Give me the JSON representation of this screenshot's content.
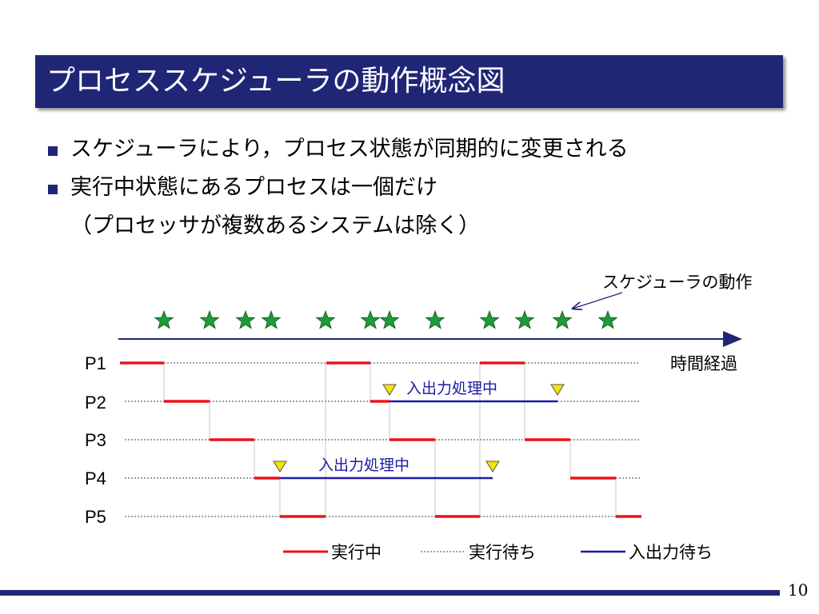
{
  "title": "プロセススケジューラの動作概念図",
  "bullets": [
    {
      "text": "スケジューラにより，プロセス状態が同期的に変更される"
    },
    {
      "text": "実行中状態にあるプロセスは一個だけ",
      "sub": "（プロセッサが複数あるシステムは除く）"
    }
  ],
  "diagram": {
    "scheduler_label": "スケジューラの動作",
    "time_label": "時間経過",
    "process_labels": [
      "P1",
      "P2",
      "P3",
      "P4",
      "P5"
    ],
    "io_labels": [
      "入出力処理中",
      "入出力処理中"
    ],
    "legend": {
      "running": "実行中",
      "waiting": "実行待ち",
      "io_wait": "入出力待ち"
    },
    "colors": {
      "running": "#e8141c",
      "waiting": "#a0a0a0",
      "io_wait": "#1a1aa8",
      "star": "#1f9a3a",
      "marker": "#f2e600"
    }
  },
  "page_number": "10"
}
